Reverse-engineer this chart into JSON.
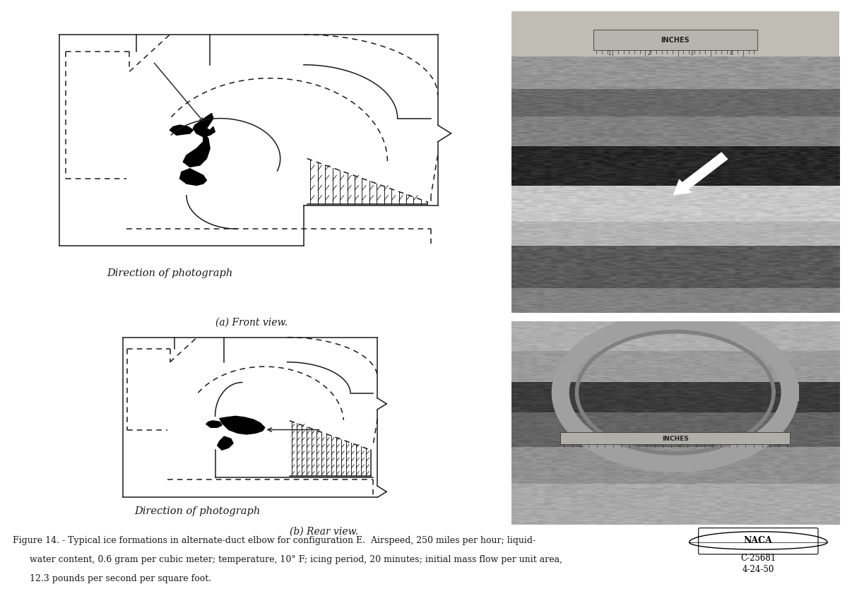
{
  "caption_line1": "Figure 14. - Typical ice formations in alternate-duct elbow for configuration E.  Airspeed, 250 miles per hour; liquid-",
  "caption_line2": "water content, 0.6 gram per cubic meter; temperature, 10° F; icing period, 20 minutes; initial mass flow per unit area,",
  "caption_line3": "12.3 pounds per second per square foot.",
  "label_a": "(a) Front view.",
  "label_b": "(b) Rear view.",
  "dir_photo": "Direction of photograph",
  "naca_id": "C-25681",
  "naca_date": "4-24-50",
  "fg_color": "#1a1a1a",
  "caption_fontsize": 9.0,
  "label_fontsize": 10,
  "dir_fontsize": 10.5
}
